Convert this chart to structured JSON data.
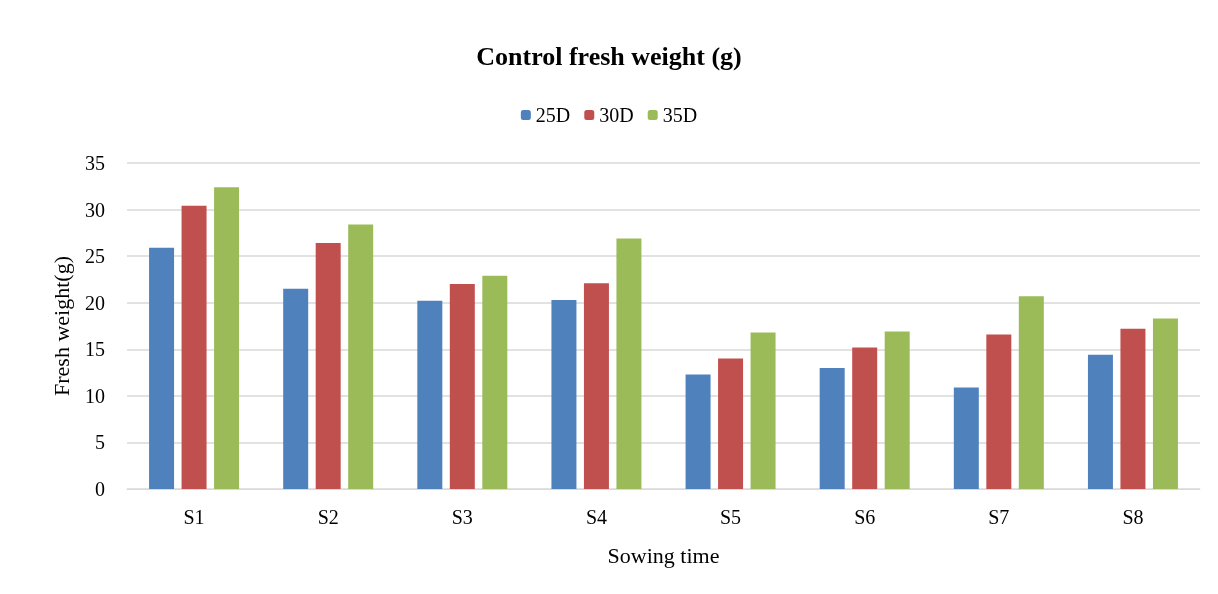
{
  "chart_data": {
    "type": "bar",
    "title": "Control fresh weight (g)",
    "xlabel": "Sowing time",
    "ylabel": "Fresh weight(g)",
    "categories": [
      "S1",
      "S2",
      "S3",
      "S4",
      "S5",
      "S6",
      "S7",
      "S8"
    ],
    "series": [
      {
        "name": "25D",
        "color": "#4f81bd",
        "values": [
          25.9,
          21.5,
          20.2,
          20.3,
          12.3,
          13.0,
          10.9,
          14.4
        ]
      },
      {
        "name": "30D",
        "color": "#c0504d",
        "values": [
          30.4,
          26.4,
          22.0,
          22.1,
          14.0,
          15.2,
          16.6,
          17.2
        ]
      },
      {
        "name": "35D",
        "color": "#9bbb59",
        "values": [
          32.4,
          28.4,
          22.9,
          26.9,
          16.8,
          16.9,
          20.7,
          18.3
        ]
      }
    ],
    "ylim": [
      0,
      35
    ],
    "yticks": [
      0,
      5,
      10,
      15,
      20,
      25,
      30,
      35
    ],
    "grid": "y",
    "legend": "top"
  }
}
